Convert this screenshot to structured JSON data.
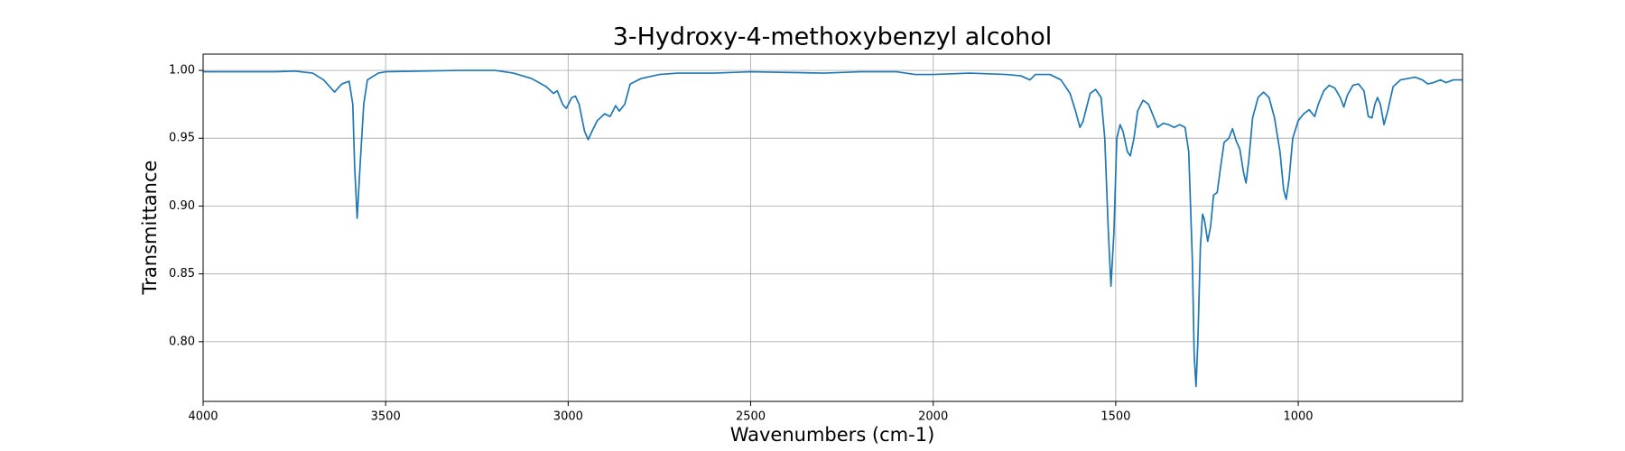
{
  "chart_data": {
    "type": "line",
    "title": "3-Hydroxy-4-methoxybenzyl alcohol",
    "xlabel": "Wavenumbers (cm-1)",
    "ylabel": "Transmittance",
    "color": "#1f77b4",
    "grid": true,
    "xlim": [
      4000,
      550
    ],
    "ylim": [
      0.756,
      1.012
    ],
    "xticks": [
      4000,
      3500,
      3000,
      2500,
      2000,
      1500,
      1000
    ],
    "yticks": [
      {
        "value": 0.8,
        "label": "0.80"
      },
      0.85,
      {
        "value": 0.9,
        "label": "0.90"
      },
      0.95,
      {
        "value": 1.0,
        "label": "1.00"
      }
    ],
    "x": [
      4000,
      3900,
      3800,
      3750,
      3700,
      3670,
      3640,
      3620,
      3600,
      3590,
      3585,
      3578,
      3570,
      3560,
      3550,
      3520,
      3500,
      3300,
      3200,
      3150,
      3100,
      3060,
      3040,
      3030,
      3015,
      3005,
      2990,
      2980,
      2970,
      2955,
      2945,
      2935,
      2920,
      2900,
      2885,
      2870,
      2860,
      2845,
      2830,
      2800,
      2750,
      2700,
      2600,
      2500,
      2300,
      2200,
      2100,
      2050,
      2000,
      1900,
      1800,
      1760,
      1735,
      1720,
      1680,
      1650,
      1625,
      1610,
      1598,
      1590,
      1570,
      1555,
      1540,
      1530,
      1520,
      1513,
      1505,
      1497,
      1488,
      1480,
      1468,
      1460,
      1450,
      1440,
      1425,
      1410,
      1395,
      1385,
      1370,
      1355,
      1340,
      1325,
      1310,
      1300,
      1290,
      1285,
      1280,
      1275,
      1268,
      1262,
      1257,
      1248,
      1240,
      1232,
      1222,
      1212,
      1203,
      1190,
      1180,
      1170,
      1160,
      1150,
      1143,
      1135,
      1125,
      1110,
      1095,
      1080,
      1065,
      1050,
      1040,
      1033,
      1025,
      1015,
      1000,
      985,
      970,
      955,
      945,
      930,
      915,
      900,
      885,
      875,
      865,
      850,
      835,
      820,
      808,
      798,
      790,
      783,
      775,
      765,
      755,
      740,
      720,
      700,
      680,
      660,
      645,
      630,
      610,
      595,
      575,
      550
    ],
    "values": [
      0.999,
      0.999,
      0.999,
      0.9995,
      0.998,
      0.993,
      0.984,
      0.99,
      0.992,
      0.975,
      0.93,
      0.891,
      0.93,
      0.975,
      0.993,
      0.998,
      0.999,
      1.0,
      1.0,
      0.998,
      0.994,
      0.988,
      0.983,
      0.985,
      0.975,
      0.972,
      0.98,
      0.981,
      0.975,
      0.955,
      0.949,
      0.955,
      0.963,
      0.968,
      0.966,
      0.974,
      0.97,
      0.975,
      0.99,
      0.994,
      0.997,
      0.998,
      0.998,
      0.999,
      0.998,
      0.999,
      0.999,
      0.997,
      0.997,
      0.998,
      0.997,
      0.996,
      0.993,
      0.997,
      0.997,
      0.993,
      0.983,
      0.97,
      0.958,
      0.962,
      0.983,
      0.986,
      0.98,
      0.95,
      0.88,
      0.841,
      0.88,
      0.95,
      0.96,
      0.955,
      0.94,
      0.937,
      0.95,
      0.97,
      0.978,
      0.975,
      0.965,
      0.958,
      0.961,
      0.96,
      0.958,
      0.96,
      0.958,
      0.94,
      0.86,
      0.79,
      0.767,
      0.8,
      0.87,
      0.894,
      0.89,
      0.874,
      0.885,
      0.908,
      0.91,
      0.93,
      0.947,
      0.95,
      0.957,
      0.948,
      0.942,
      0.925,
      0.917,
      0.935,
      0.965,
      0.98,
      0.984,
      0.98,
      0.965,
      0.94,
      0.912,
      0.905,
      0.92,
      0.95,
      0.963,
      0.968,
      0.971,
      0.966,
      0.975,
      0.985,
      0.989,
      0.987,
      0.98,
      0.973,
      0.982,
      0.989,
      0.99,
      0.985,
      0.966,
      0.965,
      0.975,
      0.98,
      0.975,
      0.96,
      0.97,
      0.988,
      0.993,
      0.994,
      0.995,
      0.993,
      0.99,
      0.991,
      0.993,
      0.991,
      0.993,
      0.993
    ]
  }
}
